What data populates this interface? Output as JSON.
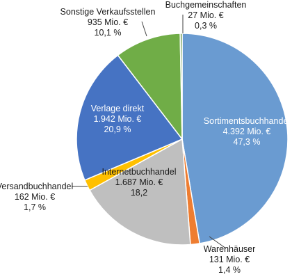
{
  "chart_data": {
    "type": "pie",
    "slices": [
      {
        "name": "Sortimentsbuchhandel",
        "value_text": "4.392 Mio. €",
        "percent_text": "47,3 %",
        "percent": 47.3,
        "color": "#6a9bd1",
        "label_color": "#ffffff"
      },
      {
        "name": "Warenhäuser",
        "value_text": "131 Mio. €",
        "percent_text": "1,4 %",
        "percent": 1.4,
        "color": "#ee7d31",
        "label_color": "#1a1a1a"
      },
      {
        "name": "Internetbuchhandel",
        "value_text": "1.687 Mio. €",
        "percent_text": "18,2",
        "percent": 18.2,
        "color": "#bfbfbf",
        "label_color": "#1a1a1a"
      },
      {
        "name": "Versandbuchhandel",
        "value_text": "162 Mio. €",
        "percent_text": "1,7 %",
        "percent": 1.7,
        "color": "#ffc000",
        "label_color": "#1a1a1a"
      },
      {
        "name": "Verlage direkt",
        "value_text": "1.942 Mio. €",
        "percent_text": "20,9 %",
        "percent": 20.9,
        "color": "#4673c3",
        "label_color": "#ffffff"
      },
      {
        "name": "Sonstige Verkaufsstellen",
        "value_text": "935 Mio. €",
        "percent_text": "10,1 %",
        "percent": 10.1,
        "color": "#70ad47",
        "label_color": "#1a1a1a"
      },
      {
        "name": "Buchgemeinschaften",
        "value_text": "27 Mio. €",
        "percent_text": "0,3 %",
        "percent": 0.3,
        "color": "#5b8f3a",
        "label_color": "#1a1a1a"
      }
    ]
  }
}
